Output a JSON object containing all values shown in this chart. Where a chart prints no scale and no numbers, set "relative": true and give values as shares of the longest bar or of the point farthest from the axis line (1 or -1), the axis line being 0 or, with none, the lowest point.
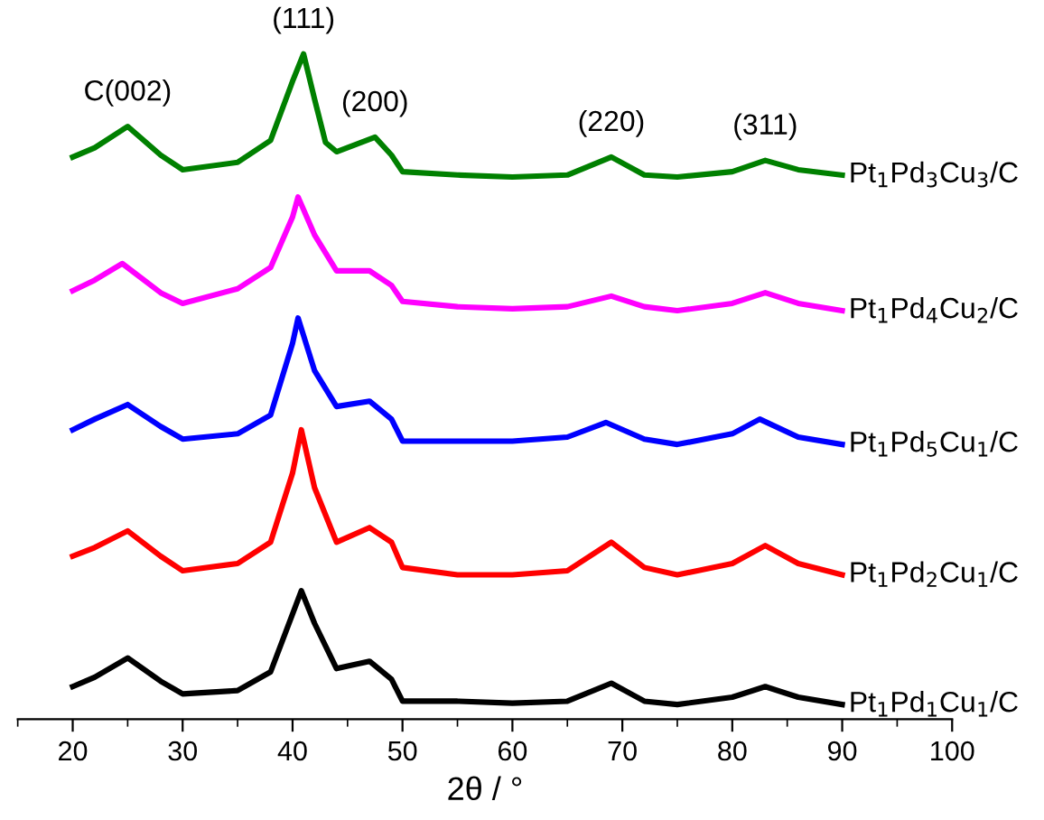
{
  "chart_data": {
    "type": "line",
    "relative": true,
    "xlabel": "2θ / °",
    "xlim": [
      15,
      100
    ],
    "xticks": [
      20,
      30,
      40,
      50,
      60,
      70,
      80,
      90,
      100
    ],
    "grid": false,
    "legend": false,
    "marker": "none",
    "line_style": "solid",
    "series": [
      {
        "name": "Pt$_{1}$Pd$_{1}$Cu$_{1}$/C",
        "color": "#000000",
        "x": [
          20,
          22,
          25,
          28,
          30,
          35,
          38,
          40,
          40.8,
          42,
          44,
          47,
          49,
          50,
          55,
          60,
          65,
          69,
          72,
          75,
          80,
          83,
          86,
          90
        ],
        "values": [
          0.049,
          0.063,
          0.092,
          0.057,
          0.038,
          0.043,
          0.071,
          0.158,
          0.193,
          0.144,
          0.076,
          0.087,
          0.06,
          0.027,
          0.027,
          0.024,
          0.027,
          0.054,
          0.027,
          0.022,
          0.033,
          0.049,
          0.033,
          0.022
        ]
      },
      {
        "name": "Pt$_{1}$Pd$_{2}$Cu$_{1}$/C",
        "color": "#ff0000",
        "x": [
          20,
          22,
          25,
          28,
          30,
          35,
          38,
          40,
          40.8,
          42,
          44,
          47,
          49,
          50,
          55,
          60,
          65,
          69,
          72,
          75,
          80,
          83,
          86,
          90
        ],
        "values": [
          0.245,
          0.258,
          0.283,
          0.245,
          0.223,
          0.234,
          0.266,
          0.37,
          0.435,
          0.348,
          0.266,
          0.288,
          0.266,
          0.228,
          0.217,
          0.217,
          0.223,
          0.266,
          0.228,
          0.217,
          0.234,
          0.261,
          0.234,
          0.217
        ]
      },
      {
        "name": "Pt$_{1}$Pd$_{5}$Cu$_{1}$/C",
        "color": "#0000ff",
        "x": [
          20,
          22,
          25,
          28,
          30,
          35,
          38,
          40,
          40.5,
          42,
          44,
          47,
          49,
          50,
          55,
          60,
          65,
          68.5,
          72,
          75,
          80,
          82.5,
          86,
          90
        ],
        "values": [
          0.435,
          0.451,
          0.473,
          0.44,
          0.421,
          0.429,
          0.457,
          0.565,
          0.603,
          0.524,
          0.47,
          0.478,
          0.451,
          0.418,
          0.418,
          0.418,
          0.424,
          0.446,
          0.421,
          0.413,
          0.429,
          0.451,
          0.424,
          0.413
        ]
      },
      {
        "name": "Pt$_{1}$Pd$_{4}$Cu$_{2}$/C",
        "color": "#ff00ff",
        "x": [
          20,
          22,
          24.5,
          28,
          30,
          35,
          38,
          40,
          40.5,
          42,
          44,
          47,
          49,
          50,
          55,
          60,
          65,
          69,
          72,
          75,
          80,
          83,
          86,
          90
        ],
        "values": [
          0.644,
          0.66,
          0.685,
          0.641,
          0.625,
          0.647,
          0.679,
          0.755,
          0.785,
          0.728,
          0.674,
          0.674,
          0.652,
          0.628,
          0.62,
          0.617,
          0.62,
          0.636,
          0.62,
          0.614,
          0.625,
          0.641,
          0.625,
          0.614
        ]
      },
      {
        "name": "Pt$_{1}$Pd$_{3}$Cu$_{3}$/C",
        "color": "#008000",
        "x": [
          20,
          22,
          25,
          28,
          30,
          35,
          38,
          40,
          41,
          42,
          43,
          44,
          47.5,
          49,
          50,
          55,
          60,
          65,
          69,
          72,
          75,
          80,
          83,
          86,
          90
        ],
        "values": [
          0.845,
          0.859,
          0.891,
          0.848,
          0.826,
          0.837,
          0.87,
          0.959,
          1.0,
          0.932,
          0.867,
          0.853,
          0.875,
          0.848,
          0.823,
          0.818,
          0.815,
          0.818,
          0.845,
          0.818,
          0.815,
          0.823,
          0.84,
          0.826,
          0.818
        ]
      }
    ],
    "annotations": [
      {
        "text": "C(002)",
        "x": 25,
        "y": 0.891
      },
      {
        "text": "(111)",
        "x": 41,
        "y": 1.0
      },
      {
        "text": "(200)",
        "x": 47.5,
        "y": 0.875
      },
      {
        "text": "(220)",
        "x": 69,
        "y": 0.845
      },
      {
        "text": "(311)",
        "x": 83,
        "y": 0.84
      }
    ]
  }
}
